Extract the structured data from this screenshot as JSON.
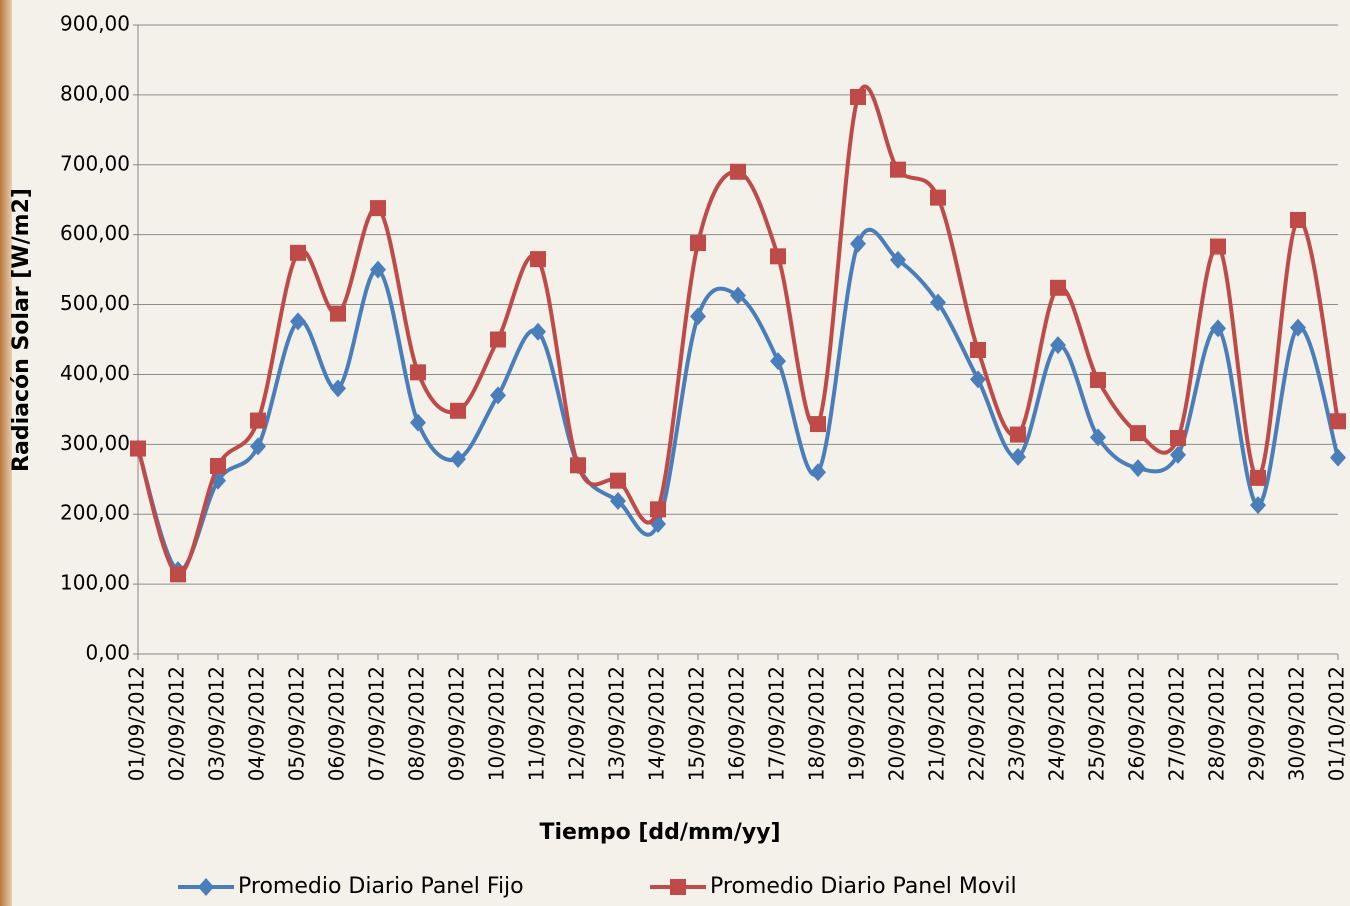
{
  "chart_data": {
    "type": "line",
    "x_label": "Tiempo  [dd/mm/yy]",
    "y_label": "Radiacón Solar [W/m2]",
    "categories": [
      "01/09/2012",
      "02/09/2012",
      "03/09/2012",
      "04/09/2012",
      "05/09/2012",
      "06/09/2012",
      "07/09/2012",
      "08/09/2012",
      "09/09/2012",
      "10/09/2012",
      "11/09/2012",
      "12/09/2012",
      "13/09/2012",
      "14/09/2012",
      "15/09/2012",
      "16/09/2012",
      "17/09/2012",
      "18/09/2012",
      "19/09/2012",
      "20/09/2012",
      "21/09/2012",
      "22/09/2012",
      "23/09/2012",
      "24/09/2012",
      "25/09/2012",
      "26/09/2012",
      "27/09/2012",
      "28/09/2012",
      "29/09/2012",
      "30/09/2012",
      "01/10/2012"
    ],
    "series": [
      {
        "name": "Promedio Diario Panel Fijo",
        "color": "#4a7ebb",
        "marker": "diamond",
        "values": [
          294,
          120,
          248,
          297,
          476,
          380,
          550,
          331,
          279,
          370,
          461,
          270,
          219,
          186,
          483,
          513,
          419,
          260,
          587,
          564,
          503,
          393,
          282,
          442,
          310,
          266,
          285,
          466,
          213,
          467,
          281
        ]
      },
      {
        "name": "Promedio Diario Panel Movil",
        "color": "#be4b48",
        "marker": "square",
        "values": [
          294,
          114,
          269,
          334,
          574,
          487,
          638,
          403,
          348,
          450,
          565,
          270,
          248,
          207,
          588,
          690,
          569,
          329,
          797,
          693,
          653,
          435,
          314,
          524,
          392,
          316,
          309,
          583,
          252,
          621,
          333
        ]
      }
    ],
    "ylim": [
      0,
      900
    ],
    "yticks": [
      {
        "value": 0,
        "label": "0,00"
      },
      {
        "value": 100,
        "label": "100,00"
      },
      {
        "value": 200,
        "label": "200,00"
      },
      {
        "value": 300,
        "label": "300,00"
      },
      {
        "value": 400,
        "label": "400,00"
      },
      {
        "value": 500,
        "label": "500,00"
      },
      {
        "value": 600,
        "label": "600,00"
      },
      {
        "value": 700,
        "label": "700,00"
      },
      {
        "value": 800,
        "label": "800,00"
      },
      {
        "value": 900,
        "label": "900,00"
      }
    ],
    "grid": true,
    "smooth": true,
    "legend": "bottom"
  }
}
